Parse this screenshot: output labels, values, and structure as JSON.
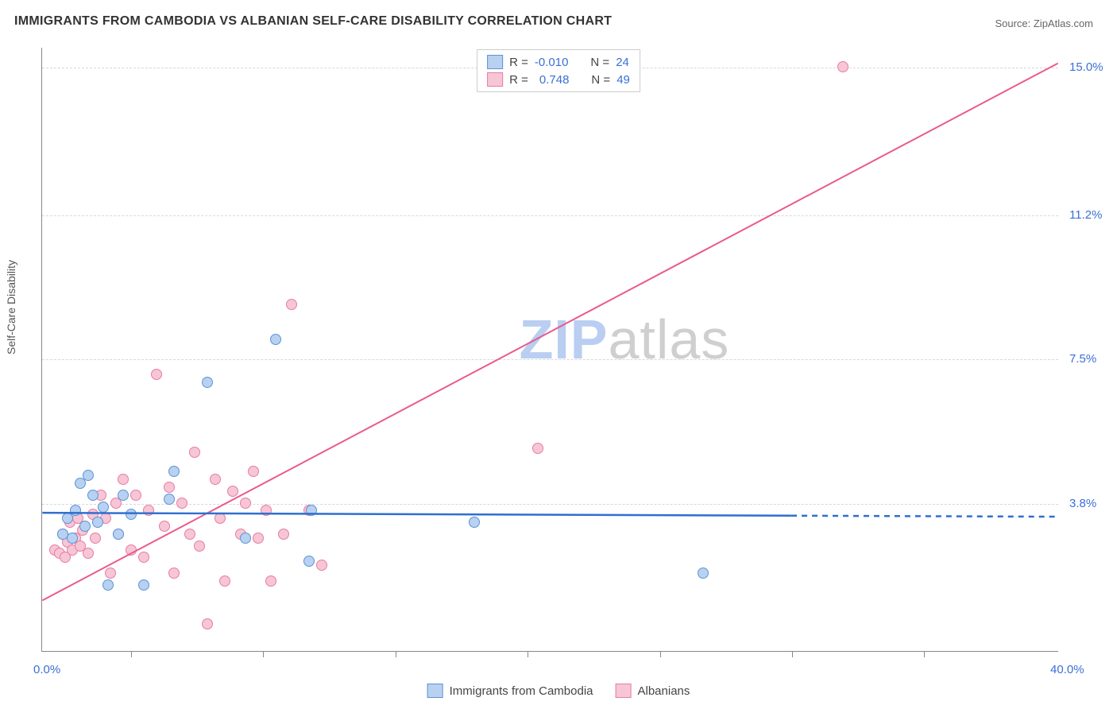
{
  "title": "IMMIGRANTS FROM CAMBODIA VS ALBANIAN SELF-CARE DISABILITY CORRELATION CHART",
  "source_label": "Source: ZipAtlas.com",
  "y_axis_label": "Self-Care Disability",
  "watermark": {
    "zip": "ZIP",
    "atlas": "atlas",
    "color_zip": "#b9cef0",
    "color_atlas": "#cfcfcf"
  },
  "chart": {
    "type": "scatter",
    "background_color": "#ffffff",
    "grid_color": "#d8d8d8",
    "xlim": [
      0,
      40
    ],
    "ylim": [
      0,
      15.5
    ],
    "x_axis_min_label": "0.0%",
    "x_axis_max_label": "40.0%",
    "y_ticks": [
      {
        "value": 3.8,
        "label": "3.8%"
      },
      {
        "value": 7.5,
        "label": "7.5%"
      },
      {
        "value": 11.2,
        "label": "11.2%"
      },
      {
        "value": 15.0,
        "label": "15.0%"
      }
    ],
    "x_tick_positions": [
      3.5,
      8.7,
      13.9,
      19.1,
      24.3,
      29.5,
      34.7
    ],
    "axis_value_color": "#3b6fd6",
    "axis_value_fontsize": 15
  },
  "series": {
    "blue": {
      "name": "Immigrants from Cambodia",
      "fill": "#b9d1f0",
      "stroke": "#5a93d8",
      "R": "-0.010",
      "N": "24",
      "trend": {
        "y_start": 3.55,
        "y_end": 3.45,
        "solid_until_x": 29.5,
        "color": "#2f6fd0",
        "width": 2.5
      },
      "points": [
        [
          0.8,
          3.0
        ],
        [
          1.0,
          3.4
        ],
        [
          1.2,
          2.9
        ],
        [
          1.3,
          3.6
        ],
        [
          1.5,
          4.3
        ],
        [
          1.7,
          3.2
        ],
        [
          1.8,
          4.5
        ],
        [
          2.0,
          4.0
        ],
        [
          2.2,
          3.3
        ],
        [
          2.4,
          3.7
        ],
        [
          2.6,
          1.7
        ],
        [
          3.0,
          3.0
        ],
        [
          3.2,
          4.0
        ],
        [
          3.5,
          3.5
        ],
        [
          4.0,
          1.7
        ],
        [
          5.0,
          3.9
        ],
        [
          5.2,
          4.6
        ],
        [
          6.5,
          6.9
        ],
        [
          8.0,
          2.9
        ],
        [
          9.2,
          8.0
        ],
        [
          10.5,
          2.3
        ],
        [
          10.6,
          3.6
        ],
        [
          17.0,
          3.3
        ],
        [
          26.0,
          2.0
        ]
      ]
    },
    "pink": {
      "name": "Albanians",
      "fill": "#f7c6d6",
      "stroke": "#e87ba2",
      "R": "0.748",
      "N": "49",
      "trend": {
        "y_start": 1.3,
        "y_end": 15.1,
        "solid_until_x": 40,
        "color": "#ea5a8e",
        "width": 2
      },
      "points": [
        [
          0.5,
          2.6
        ],
        [
          0.7,
          2.5
        ],
        [
          0.8,
          3.0
        ],
        [
          0.9,
          2.4
        ],
        [
          1.0,
          2.8
        ],
        [
          1.1,
          3.3
        ],
        [
          1.2,
          2.6
        ],
        [
          1.3,
          2.9
        ],
        [
          1.4,
          3.4
        ],
        [
          1.5,
          2.7
        ],
        [
          1.6,
          3.1
        ],
        [
          1.8,
          2.5
        ],
        [
          2.0,
          3.5
        ],
        [
          2.1,
          2.9
        ],
        [
          2.3,
          4.0
        ],
        [
          2.5,
          3.4
        ],
        [
          2.7,
          2.0
        ],
        [
          2.9,
          3.8
        ],
        [
          3.0,
          3.0
        ],
        [
          3.2,
          4.4
        ],
        [
          3.5,
          2.6
        ],
        [
          3.7,
          4.0
        ],
        [
          4.0,
          2.4
        ],
        [
          4.2,
          3.6
        ],
        [
          4.5,
          7.1
        ],
        [
          4.8,
          3.2
        ],
        [
          5.0,
          4.2
        ],
        [
          5.2,
          2.0
        ],
        [
          5.5,
          3.8
        ],
        [
          5.8,
          3.0
        ],
        [
          6.0,
          5.1
        ],
        [
          6.2,
          2.7
        ],
        [
          6.5,
          0.7
        ],
        [
          6.8,
          4.4
        ],
        [
          7.0,
          3.4
        ],
        [
          7.2,
          1.8
        ],
        [
          7.5,
          4.1
        ],
        [
          7.8,
          3.0
        ],
        [
          8.0,
          3.8
        ],
        [
          8.3,
          4.6
        ],
        [
          8.5,
          2.9
        ],
        [
          8.8,
          3.6
        ],
        [
          9.0,
          1.8
        ],
        [
          9.5,
          3.0
        ],
        [
          9.8,
          8.9
        ],
        [
          10.5,
          3.6
        ],
        [
          11.0,
          2.2
        ],
        [
          19.5,
          5.2
        ],
        [
          31.5,
          15.0
        ]
      ]
    }
  },
  "legend_top_labels": {
    "R": "R =",
    "N": "N ="
  },
  "legend_bottom_order": [
    "blue",
    "pink"
  ]
}
